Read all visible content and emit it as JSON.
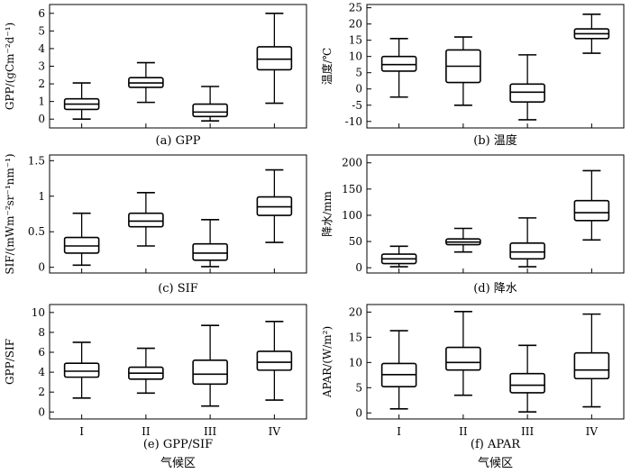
{
  "categories": [
    "I",
    "II",
    "III",
    "IV"
  ],
  "xlabel": "气候区",
  "chart_data": [
    {
      "type": "box",
      "caption": "(a) GPP",
      "ylabel": "GPP/(gCm⁻²d⁻¹)",
      "ylim": [
        -0.5,
        6.5
      ],
      "yticks": [
        0,
        1,
        2,
        3,
        4,
        5,
        6
      ],
      "boxes": [
        {
          "category": "I",
          "min": 0.0,
          "q1": 0.55,
          "median": 0.85,
          "q3": 1.15,
          "max": 2.05
        },
        {
          "category": "II",
          "min": 0.95,
          "q1": 1.8,
          "median": 2.05,
          "q3": 2.35,
          "max": 3.2
        },
        {
          "category": "III",
          "min": -0.1,
          "q1": 0.15,
          "median": 0.4,
          "q3": 0.85,
          "max": 1.85
        },
        {
          "category": "IV",
          "min": 0.9,
          "q1": 2.8,
          "median": 3.4,
          "q3": 4.1,
          "max": 6.0
        }
      ]
    },
    {
      "type": "box",
      "caption": "(b) 温度",
      "ylabel": "温度/℃",
      "ylim": [
        -12,
        26
      ],
      "yticks": [
        -10,
        -5,
        0,
        5,
        10,
        15,
        20,
        25
      ],
      "boxes": [
        {
          "category": "I",
          "min": -2.5,
          "q1": 5.5,
          "median": 7.5,
          "q3": 10.0,
          "max": 15.5
        },
        {
          "category": "II",
          "min": -5.0,
          "q1": 2.0,
          "median": 7.0,
          "q3": 12.0,
          "max": 16.0
        },
        {
          "category": "III",
          "min": -9.5,
          "q1": -4.0,
          "median": -1.0,
          "q3": 1.5,
          "max": 10.5
        },
        {
          "category": "IV",
          "min": 11.0,
          "q1": 15.5,
          "median": 17.0,
          "q3": 18.5,
          "max": 23.0
        }
      ]
    },
    {
      "type": "box",
      "caption": "(c) SIF",
      "ylabel": "SIF/(mWm⁻²sr⁻¹nm⁻¹)",
      "ylim": [
        -0.08,
        1.58
      ],
      "yticks": [
        0,
        0.5,
        1,
        1.5
      ],
      "ytick_labels": [
        "0",
        "0.5",
        "1",
        "1.5"
      ],
      "boxes": [
        {
          "category": "I",
          "min": 0.03,
          "q1": 0.2,
          "median": 0.3,
          "q3": 0.42,
          "max": 0.76
        },
        {
          "category": "II",
          "min": 0.3,
          "q1": 0.57,
          "median": 0.65,
          "q3": 0.76,
          "max": 1.05
        },
        {
          "category": "III",
          "min": 0.01,
          "q1": 0.1,
          "median": 0.2,
          "q3": 0.33,
          "max": 0.67
        },
        {
          "category": "IV",
          "min": 0.35,
          "q1": 0.73,
          "median": 0.85,
          "q3": 0.99,
          "max": 1.37
        }
      ]
    },
    {
      "type": "box",
      "caption": "(d) 降水",
      "ylabel": "降水/mm",
      "ylim": [
        -10,
        215
      ],
      "yticks": [
        0,
        50,
        100,
        150,
        200
      ],
      "boxes": [
        {
          "category": "I",
          "min": 2,
          "q1": 8,
          "median": 17,
          "q3": 26,
          "max": 41
        },
        {
          "category": "II",
          "min": 30,
          "q1": 44,
          "median": 49,
          "q3": 55,
          "max": 75
        },
        {
          "category": "III",
          "min": 2,
          "q1": 17,
          "median": 30,
          "q3": 47,
          "max": 95
        },
        {
          "category": "IV",
          "min": 53,
          "q1": 90,
          "median": 105,
          "q3": 128,
          "max": 185
        }
      ]
    },
    {
      "type": "box",
      "caption": "(e) GPP/SIF",
      "ylabel": "GPP/SIF",
      "ylim": [
        -0.7,
        10.8
      ],
      "yticks": [
        0,
        2,
        4,
        6,
        8,
        10
      ],
      "boxes": [
        {
          "category": "I",
          "min": 1.4,
          "q1": 3.5,
          "median": 4.1,
          "q3": 4.9,
          "max": 7.0
        },
        {
          "category": "II",
          "min": 1.9,
          "q1": 3.3,
          "median": 3.9,
          "q3": 4.5,
          "max": 6.4
        },
        {
          "category": "III",
          "min": 0.6,
          "q1": 2.8,
          "median": 3.8,
          "q3": 5.2,
          "max": 8.7
        },
        {
          "category": "IV",
          "min": 1.2,
          "q1": 4.2,
          "median": 5.0,
          "q3": 6.1,
          "max": 9.1
        }
      ]
    },
    {
      "type": "box",
      "caption": "(f) APAR",
      "ylabel": "APAR/(W/m²)",
      "ylim": [
        -1.2,
        21.5
      ],
      "yticks": [
        0,
        5,
        10,
        15,
        20
      ],
      "boxes": [
        {
          "category": "I",
          "min": 0.8,
          "q1": 5.2,
          "median": 7.6,
          "q3": 9.8,
          "max": 16.3
        },
        {
          "category": "II",
          "min": 3.5,
          "q1": 8.5,
          "median": 10.0,
          "q3": 13.0,
          "max": 20.1
        },
        {
          "category": "III",
          "min": 0.2,
          "q1": 4.0,
          "median": 5.5,
          "q3": 7.8,
          "max": 13.4
        },
        {
          "category": "IV",
          "min": 1.2,
          "q1": 6.8,
          "median": 8.5,
          "q3": 11.9,
          "max": 19.6
        }
      ]
    }
  ]
}
